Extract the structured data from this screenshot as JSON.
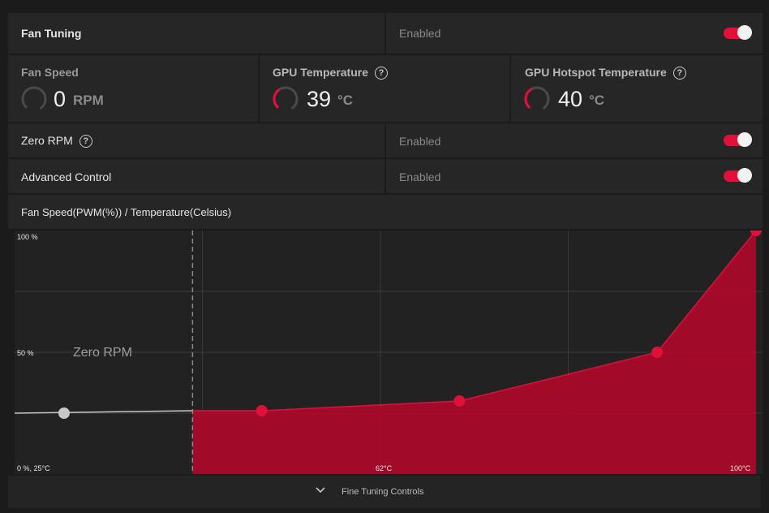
{
  "fan_tuning": {
    "title": "Fan Tuning",
    "status": "Enabled",
    "toggle_on": true
  },
  "metrics": [
    {
      "label": "Fan Speed",
      "value": "0",
      "unit": "RPM",
      "gauge_fraction": 0.0,
      "help": false
    },
    {
      "label": "GPU Temperature",
      "value": "39",
      "unit": "°C",
      "gauge_fraction": 0.3,
      "help": true
    },
    {
      "label": "GPU Hotspot Temperature",
      "value": "40",
      "unit": "°C",
      "gauge_fraction": 0.32,
      "help": true
    }
  ],
  "zero_rpm": {
    "label": "Zero RPM",
    "status": "Enabled",
    "toggle_on": true
  },
  "advanced_control": {
    "label": "Advanced Control",
    "status": "Enabled",
    "toggle_on": true
  },
  "curve_header": "Fan Speed(PWM(%)) / Temperature(Celsius)",
  "help_glyph": "?",
  "chart_labels": {
    "y_top": "100 %",
    "y_mid": "50 %",
    "origin": "0 %, 25°C",
    "x_mid": "62°C",
    "x_max": "100°C",
    "zero_rpm_region": "Zero RPM"
  },
  "chart_data": {
    "type": "area",
    "xlabel": "Temperature(Celsius)",
    "ylabel": "Fan Speed(PWM(%))",
    "xlim": [
      25,
      100
    ],
    "ylim": [
      0,
      100
    ],
    "zero_rpm_threshold_temp": 43,
    "zero_rpm_point": {
      "x": 30,
      "y": 25
    },
    "series": [
      {
        "x": [
          43,
          50,
          70,
          90,
          100
        ],
        "y": [
          26,
          26,
          30,
          50,
          100
        ]
      }
    ],
    "colors": {
      "fill": "#b0082a",
      "point": "#e0103a",
      "zero_line": "#c8c8c8"
    },
    "grid": true
  },
  "footer": {
    "label": "Fine Tuning Controls",
    "icon": "chevron-down-icon"
  }
}
